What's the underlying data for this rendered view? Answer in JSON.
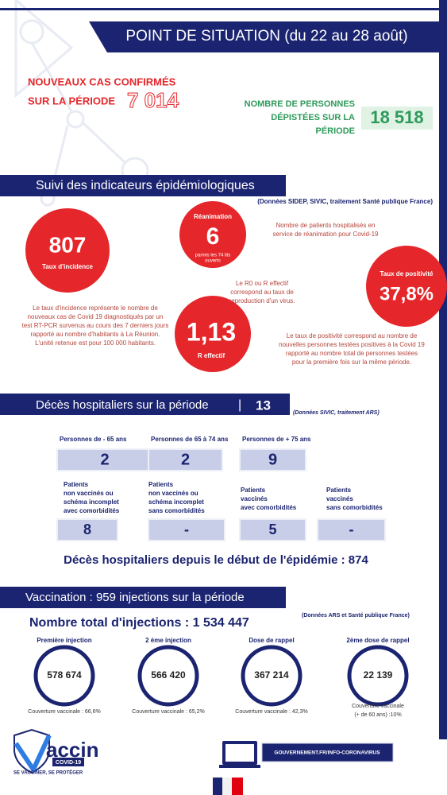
{
  "header": {
    "title": "POINT DE SITUATION (du 22 au 28 août)"
  },
  "new_cases": {
    "label": [
      "NOUVEAUX CAS CONFIRMÉS",
      "SUR LA PÉRIODE"
    ],
    "value": "7 014"
  },
  "screened": {
    "label": [
      "NOMBRE DE PERSONNES",
      "DÉPISTÉES SUR LA",
      "PÉRIODE"
    ],
    "value": "18 518"
  },
  "indicators": {
    "title": "Suivi des indicateurs épidémiologiques",
    "source": "(Données SIDEP, SIVIC, traitement Santé publique France)",
    "incidence": {
      "value": "807",
      "label": "Taux d'incidence",
      "note": [
        "Le taux d'incidence représente le nombre de",
        "nouveaux cas de Covid 19 diagnostiqués par un",
        "test RT-PCR survenus au cours des 7 derniers jours",
        "rapporté au nombre d'habitants à La Réunion.",
        "L'unité retenue est pour 100 000 habitants."
      ]
    },
    "reanimation": {
      "label": "Réanimation",
      "value": "6",
      "sub": [
        "parmis les 74 lits",
        "ouverts"
      ],
      "note": [
        "Nombre de patients hospitalisés en",
        "service de réanimation pour Covid-19"
      ]
    },
    "positivity": {
      "label": "Taux de positivité",
      "value": "37,8%",
      "note": [
        "Le taux de positivité correspond au nombre de",
        "nouvelles personnes testées positives à la Covid 19",
        "rapporté au nombre total de personnes testées",
        "pour la première fois sur la même période."
      ]
    },
    "r": {
      "value": "1,13",
      "label": "R effectif",
      "note": [
        "Le R0 ou R effectif",
        "correspond au taux de",
        "reproduction d'un virus."
      ]
    }
  },
  "deaths": {
    "title": "Décès hospitaliers sur la période",
    "separator": "|",
    "value": "13",
    "source": "(Données SIVIC, traitement ARS)",
    "age_groups": [
      {
        "label": "Personnes de - 65 ans",
        "value": "2"
      },
      {
        "label": "Personnes de 65 à 74 ans",
        "value": "2"
      },
      {
        "label": "Personnes de + 75 ans",
        "value": "9"
      }
    ],
    "patient_groups": [
      {
        "label": [
          "Patients",
          "non vaccinés ou",
          "schéma incomplet",
          "avec comorbidités"
        ],
        "value": "8"
      },
      {
        "label": [
          "Patients",
          "non vaccinés ou",
          "schéma incomplet",
          "sans comorbidités"
        ],
        "value": "-"
      },
      {
        "label": [
          "Patients",
          "vaccinés",
          "avec comorbidités"
        ],
        "value": "5"
      },
      {
        "label": [
          "Patients",
          "vaccinés",
          "sans comorbidités"
        ],
        "value": "-"
      }
    ],
    "total": "Décès hospitaliers depuis le début de l'épidémie : 874"
  },
  "vaccination": {
    "title": "Vaccination  : 959 injections sur la période",
    "total": "Nombre total d'injections : 1 534 447",
    "source": "(Données ARS et Santé publique France)",
    "doses": [
      {
        "label": "Première injection",
        "value": "578 674",
        "coverage": [
          "Couverture vaccinale : 66,6%"
        ]
      },
      {
        "label": "2 ème injection",
        "value": "566 420",
        "coverage": [
          "Couverture vaccinale : 65,2%"
        ]
      },
      {
        "label": "Dose de rappel",
        "value": "367 214",
        "coverage": [
          "Couverture vaccinale : 42,3%"
        ]
      },
      {
        "label": "2ème dose de rappel",
        "value": "22 139",
        "coverage": [
          "Couverture vaccinale",
          "(+ de 60 ans) :10%"
        ]
      }
    ]
  },
  "footer": {
    "logo": "accin",
    "logo_sub": "COVID-19",
    "slogan": "SE VACCINER, SE PROTÉGER",
    "link": "GOUVERNEMENT.FR/INFO-CORONAVIRUS"
  }
}
